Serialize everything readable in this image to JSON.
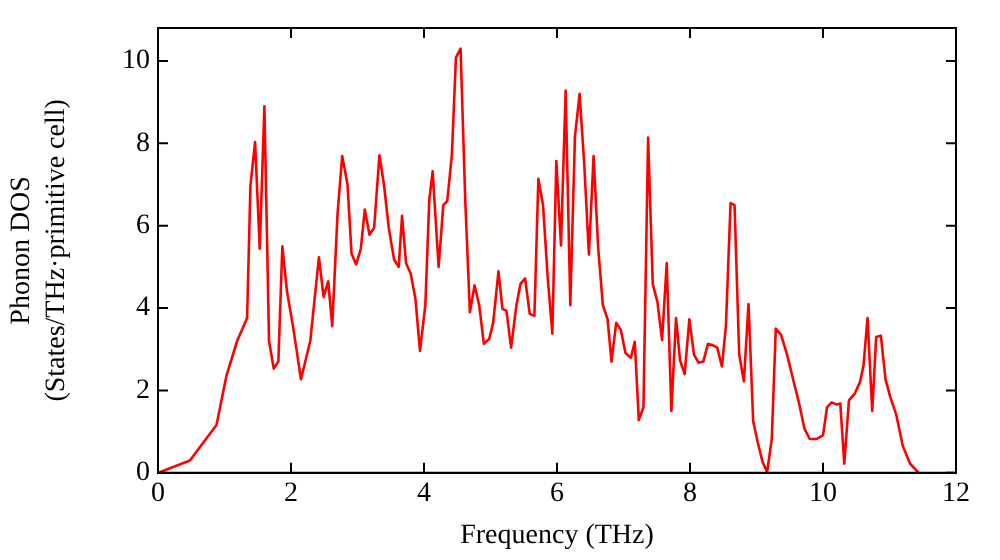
{
  "chart_data": {
    "type": "line",
    "xlabel": "Frequency (THz)",
    "ylabel": "Phonon DOS\n(States/THz·primitive cell)",
    "xlim": [
      0,
      12
    ],
    "xticks": [
      0,
      2,
      4,
      6,
      8,
      10,
      12
    ],
    "ylim": [
      0,
      10.8
    ],
    "yticks": [
      0,
      2,
      4,
      6,
      8,
      10
    ],
    "grid": false,
    "legend": false,
    "marker": "none",
    "line_style": "solid",
    "series": [
      {
        "color": "#ff0000",
        "x": [
          0,
          0.48,
          0.88,
          1.03,
          1.19,
          1.34,
          1.39,
          1.46,
          1.53,
          1.6,
          1.67,
          1.74,
          1.81,
          1.87,
          1.94,
          2.03,
          2.15,
          2.29,
          2.42,
          2.49,
          2.56,
          2.62,
          2.7,
          2.77,
          2.85,
          2.91,
          2.98,
          3.05,
          3.11,
          3.18,
          3.25,
          3.33,
          3.4,
          3.47,
          3.55,
          3.62,
          3.67,
          3.73,
          3.8,
          3.87,
          3.94,
          4.02,
          4.08,
          4.13,
          4.22,
          4.29,
          4.35,
          4.42,
          4.48,
          4.55,
          4.62,
          4.69,
          4.76,
          4.83,
          4.9,
          4.98,
          5.04,
          5.12,
          5.18,
          5.24,
          5.31,
          5.39,
          5.45,
          5.52,
          5.59,
          5.66,
          5.72,
          5.79,
          5.86,
          5.93,
          5.99,
          6.06,
          6.13,
          6.2,
          6.27,
          6.34,
          6.41,
          6.48,
          6.55,
          6.62,
          6.69,
          6.76,
          6.82,
          6.89,
          6.96,
          7.03,
          7.11,
          7.17,
          7.23,
          7.3,
          7.37,
          7.44,
          7.51,
          7.58,
          7.65,
          7.72,
          7.79,
          7.85,
          7.92,
          7.99,
          8.06,
          8.13,
          8.2,
          8.27,
          8.34,
          8.41,
          8.48,
          8.54,
          8.61,
          8.67,
          8.74,
          8.81,
          8.88,
          8.95,
          9.02,
          9.09,
          9.16,
          9.23,
          9.29,
          9.37,
          9.46,
          9.55,
          9.63,
          9.72,
          9.8,
          9.9,
          10.0,
          10.06,
          10.13,
          10.2,
          10.26,
          10.32,
          10.39,
          10.48,
          10.56,
          10.61,
          10.67,
          10.74,
          10.8,
          10.87,
          10.94,
          11.01,
          11.1,
          11.2,
          11.31,
          11.44
        ],
        "values": [
          0,
          0.3,
          1.16,
          2.36,
          3.2,
          3.76,
          6.97,
          8.03,
          5.44,
          8.9,
          3.2,
          2.53,
          2.7,
          5.5,
          4.4,
          3.56,
          2.27,
          3.2,
          5.23,
          4.27,
          4.65,
          3.56,
          6.29,
          7.69,
          7.0,
          5.32,
          5.06,
          5.44,
          6.39,
          5.78,
          5.95,
          7.71,
          6.97,
          5.95,
          5.18,
          5.0,
          6.24,
          5.09,
          4.84,
          4.24,
          2.96,
          4.07,
          6.63,
          7.32,
          5.0,
          6.5,
          6.6,
          7.74,
          10.08,
          10.3,
          6.63,
          3.9,
          4.55,
          4.07,
          3.13,
          3.25,
          3.64,
          4.89,
          3.98,
          3.93,
          3.04,
          4.07,
          4.58,
          4.72,
          3.86,
          3.81,
          7.14,
          6.5,
          4.75,
          3.38,
          7.57,
          5.52,
          9.28,
          4.07,
          8.17,
          9.2,
          7.49,
          5.3,
          7.69,
          5.44,
          4.07,
          3.73,
          2.7,
          3.64,
          3.47,
          2.91,
          2.79,
          3.18,
          1.28,
          1.59,
          8.14,
          4.58,
          4.15,
          3.22,
          5.09,
          1.5,
          3.76,
          2.73,
          2.4,
          3.73,
          2.87,
          2.67,
          2.7,
          3.13,
          3.1,
          3.04,
          2.58,
          3.56,
          6.55,
          6.5,
          2.87,
          2.22,
          4.1,
          1.25,
          0.73,
          0.27,
          0.02,
          0.82,
          3.5,
          3.35,
          2.87,
          2.27,
          1.76,
          1.08,
          0.82,
          0.82,
          0.91,
          1.59,
          1.71,
          1.66,
          1.68,
          0.22,
          1.76,
          1.93,
          2.22,
          2.62,
          3.76,
          1.5,
          3.3,
          3.33,
          2.27,
          1.85,
          1.42,
          0.65,
          0.22,
          0
        ]
      }
    ]
  }
}
